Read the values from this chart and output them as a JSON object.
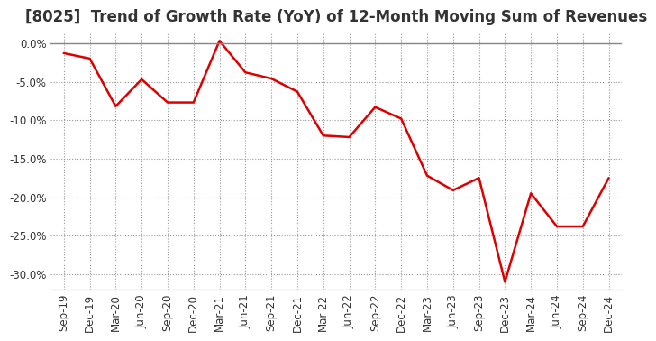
{
  "title": "[8025]  Trend of Growth Rate (YoY) of 12-Month Moving Sum of Revenues",
  "labels": [
    "Sep-19",
    "Dec-19",
    "Mar-20",
    "Jun-20",
    "Sep-20",
    "Dec-20",
    "Mar-21",
    "Jun-21",
    "Sep-21",
    "Dec-21",
    "Mar-22",
    "Jun-22",
    "Sep-22",
    "Dec-22",
    "Mar-23",
    "Jun-23",
    "Sep-23",
    "Dec-23",
    "Mar-24",
    "Jun-24",
    "Sep-24",
    "Dec-24"
  ],
  "values": [
    -0.013,
    -0.02,
    -0.082,
    -0.047,
    -0.077,
    -0.077,
    0.003,
    -0.038,
    -0.046,
    -0.063,
    -0.12,
    -0.122,
    -0.083,
    -0.098,
    -0.172,
    -0.191,
    -0.175,
    -0.31,
    -0.195,
    -0.238,
    -0.238,
    -0.175
  ],
  "line_color": "#dd0000",
  "line_width": 1.8,
  "bg_color": "#ffffff",
  "plot_bg_color": "#ffffff",
  "grid_color": "#999999",
  "ylim": [
    -0.32,
    0.015
  ],
  "yticks": [
    0.0,
    -0.05,
    -0.1,
    -0.15,
    -0.2,
    -0.25,
    -0.3
  ],
  "title_fontsize": 12,
  "tick_fontsize": 8.5,
  "title_color": "#333333"
}
